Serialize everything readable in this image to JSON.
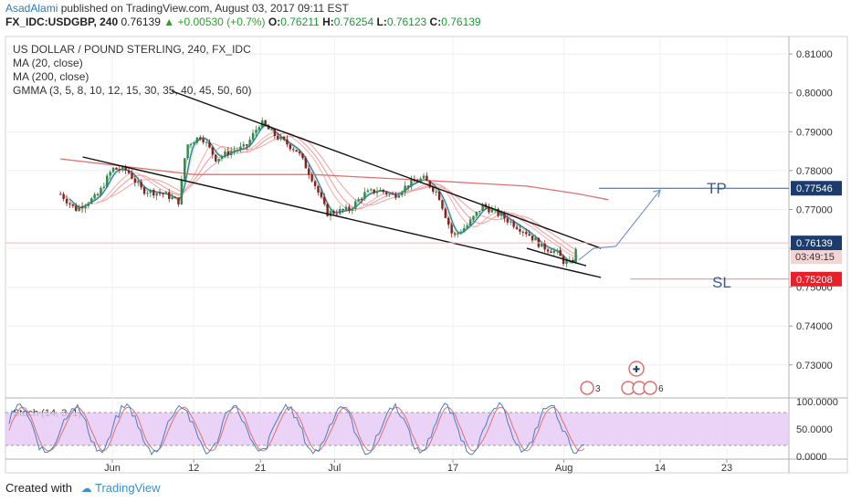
{
  "header": {
    "author": "AsadAlami",
    "published_text": "published on TradingView.com, August 03, 2017 09:11 EST",
    "symbol_line": "FX_IDC:USDGBP, 240",
    "last_price": "0.76139",
    "change": "+0.00530 (+0.7%)",
    "o_label": "O:",
    "o_value": "0.76211",
    "h_label": "H:",
    "h_value": "0.76254",
    "l_label": "L:",
    "l_value": "0.76123",
    "c_label": "C:",
    "c_value": "0.76139"
  },
  "legend": {
    "title": "US DOLLAR / POUND STERLING, 240, FX_IDC",
    "ma20": "MA (20, close)",
    "ma200": "MA (200, close)",
    "gmma": "GMMA (3, 5, 8, 10, 12, 15, 30, 35, 40, 45, 50, 60)"
  },
  "colors": {
    "price_box": "#1d3c6e",
    "tp_box": "#1d3c6e",
    "sl_box": "#e8202a",
    "bull": "#2e8b4e",
    "bear": "#8b1f1f",
    "stoch_fill": "#e6c8f5"
  },
  "chart_data": {
    "type": "candlestick",
    "yaxis": {
      "ticks": [
        "0.81000",
        "0.80000",
        "0.79000",
        "0.78000",
        "0.77000",
        "0.76000",
        "0.75000",
        "0.74000",
        "0.73000"
      ],
      "range": [
        0.7215,
        0.8145
      ]
    },
    "xaxis": {
      "ticks": [
        "Jun",
        "12",
        "21",
        "Jul",
        "17",
        "Aug",
        "14",
        "23"
      ]
    },
    "price_series": [
      {
        "date": "May 25",
        "close": 0.774
      },
      {
        "date": "May 27",
        "close": 0.77
      },
      {
        "date": "May 30",
        "close": 0.7735
      },
      {
        "date": "Jun 01",
        "close": 0.7805
      },
      {
        "date": "Jun 03",
        "close": 0.78
      },
      {
        "date": "Jun 05",
        "close": 0.775
      },
      {
        "date": "Jun 08",
        "close": 0.774
      },
      {
        "date": "Jun 10",
        "close": 0.772
      },
      {
        "date": "Jun 11",
        "close": 0.7865
      },
      {
        "date": "Jun 13",
        "close": 0.789
      },
      {
        "date": "Jun 15",
        "close": 0.783
      },
      {
        "date": "Jun 17",
        "close": 0.785
      },
      {
        "date": "Jun 19",
        "close": 0.786
      },
      {
        "date": "Jun 21",
        "close": 0.7925
      },
      {
        "date": "Jun 23",
        "close": 0.789
      },
      {
        "date": "Jun 26",
        "close": 0.785
      },
      {
        "date": "Jun 28",
        "close": 0.778
      },
      {
        "date": "Jun 30",
        "close": 0.769
      },
      {
        "date": "Jul 03",
        "close": 0.77
      },
      {
        "date": "Jul 05",
        "close": 0.774
      },
      {
        "date": "Jul 07",
        "close": 0.775
      },
      {
        "date": "Jul 09",
        "close": 0.7735
      },
      {
        "date": "Jul 11",
        "close": 0.7765
      },
      {
        "date": "Jul 13",
        "close": 0.778
      },
      {
        "date": "Jul 15",
        "close": 0.774
      },
      {
        "date": "Jul 17",
        "close": 0.763
      },
      {
        "date": "Jul 19",
        "close": 0.766
      },
      {
        "date": "Jul 21",
        "close": 0.771
      },
      {
        "date": "Jul 23",
        "close": 0.769
      },
      {
        "date": "Jul 25",
        "close": 0.7665
      },
      {
        "date": "Jul 27",
        "close": 0.764
      },
      {
        "date": "Jul 29",
        "close": 0.7605
      },
      {
        "date": "Jul 31",
        "close": 0.759
      },
      {
        "date": "Aug 01",
        "close": 0.7565
      },
      {
        "date": "Aug 02",
        "close": 0.756
      },
      {
        "date": "Aug 03",
        "close": 0.7614
      }
    ],
    "ma200": [
      {
        "date": "May 25",
        "value": 0.783
      },
      {
        "date": "Jun 12",
        "value": 0.779
      },
      {
        "date": "Jun 28",
        "value": 0.779
      },
      {
        "date": "Jul 13",
        "value": 0.7775
      },
      {
        "date": "Jul 27",
        "value": 0.776
      },
      {
        "date": "Aug 03",
        "value": 0.774
      },
      {
        "date": "Aug 07",
        "value": 0.7725
      }
    ],
    "trendlines": [
      {
        "name": "upper",
        "from": {
          "date": "Jun 09",
          "value": 0.8005
        },
        "to": {
          "date": "Aug 06",
          "value": 0.76
        }
      },
      {
        "name": "lower",
        "from": {
          "date": "May 28",
          "value": 0.7835
        },
        "to": {
          "date": "Aug 06",
          "value": 0.7525
        }
      },
      {
        "name": "inner",
        "from": {
          "date": "Jul 27",
          "value": 0.76
        },
        "to": {
          "date": "Aug 04",
          "value": 0.7555
        }
      }
    ],
    "levels": {
      "current": {
        "label": "0.76139",
        "countdown": "03:49:15",
        "value": 0.76139
      },
      "tp": {
        "label": "TP",
        "price": "0.77546",
        "value": 0.77546
      },
      "sl": {
        "label": "SL",
        "price": "0.75208",
        "value": 0.75208
      }
    },
    "projection": [
      {
        "date": "Aug 03",
        "value": 0.757
      },
      {
        "date": "Aug 05",
        "value": 0.76
      },
      {
        "date": "Aug 08",
        "value": 0.7605
      },
      {
        "date": "Aug 14",
        "value": 0.775
      }
    ],
    "event_markers": [
      "3",
      "6",
      "6",
      "6"
    ],
    "stochastic": {
      "title": "Stoch (14, 3, 1)",
      "ticks": [
        "100.0000",
        "50.0000",
        "0.0000"
      ],
      "range": [
        0,
        100
      ],
      "band": [
        20,
        80
      ]
    }
  },
  "footer": {
    "created_with": "Created with",
    "brand": "TradingView"
  }
}
